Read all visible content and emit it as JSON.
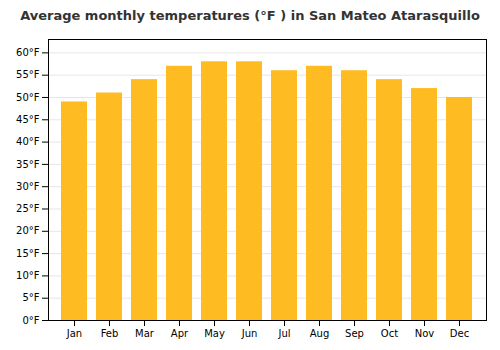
{
  "chart_data": {
    "type": "bar",
    "title": "Average monthly temperatures (°F ) in San Mateo Atarasquillo",
    "categories": [
      "Jan",
      "Feb",
      "Mar",
      "Apr",
      "May",
      "Jun",
      "Jul",
      "Aug",
      "Sep",
      "Oct",
      "Nov",
      "Dec"
    ],
    "values": [
      49,
      51,
      54,
      57,
      58,
      58,
      56,
      57,
      56,
      54,
      52,
      50
    ],
    "color": "#FFBB22",
    "ylim": [
      0,
      63
    ],
    "yticks": [
      {
        "value": 0,
        "label": "0°F"
      },
      {
        "value": 5,
        "label": "5°F"
      },
      {
        "value": 10,
        "label": "10°F"
      },
      {
        "value": 15,
        "label": "15°F"
      },
      {
        "value": 20,
        "label": "20°F"
      },
      {
        "value": 25,
        "label": "25°F"
      },
      {
        "value": 30,
        "label": "30°F"
      },
      {
        "value": 35,
        "label": "35°F"
      },
      {
        "value": 40,
        "label": "40°F"
      },
      {
        "value": 45,
        "label": "45°F"
      },
      {
        "value": 50,
        "label": "50°F"
      },
      {
        "value": 55,
        "label": "55°F"
      },
      {
        "value": 60,
        "label": "60°F"
      }
    ],
    "grid": true
  }
}
